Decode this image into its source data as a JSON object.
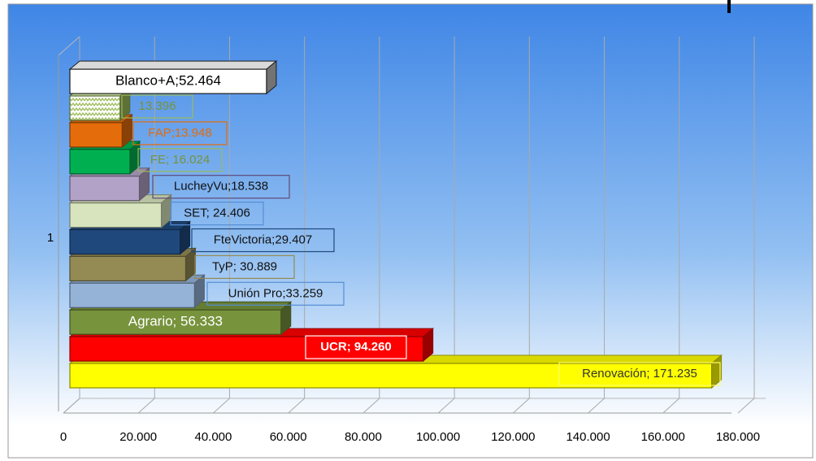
{
  "chart_data": {
    "type": "bar3d",
    "orientation": "horizontal",
    "categories": [
      "1"
    ],
    "series": [
      {
        "name": "Renovación",
        "color": "#ffff00",
        "values": [
          171235
        ],
        "value_labels": [
          "Renovación; 171.235"
        ]
      },
      {
        "name": "UCR",
        "color": "#ff0000",
        "values": [
          94260
        ],
        "value_labels": [
          "UCR; 94.260"
        ]
      },
      {
        "name": "Agrario",
        "color": "#77933c",
        "values": [
          56333
        ],
        "value_labels": [
          "Agrario; 56.333"
        ]
      },
      {
        "name": "Unión Pro",
        "color": "#95b3d7",
        "values": [
          33259
        ],
        "value_labels": [
          "Unión Pro;33.259"
        ]
      },
      {
        "name": "TyP",
        "color": "#948a54",
        "values": [
          30889
        ],
        "value_labels": [
          "TyP; 30.889"
        ]
      },
      {
        "name": "FteVictoria",
        "color": "#1f497d",
        "values": [
          29407
        ],
        "value_labels": [
          "FteVictoria;29.407"
        ]
      },
      {
        "name": "SET",
        "color": "#d7e4bd",
        "values": [
          24406
        ],
        "value_labels": [
          "SET; 24.406"
        ]
      },
      {
        "name": "LucheyVu",
        "color": "#b3a2c7",
        "values": [
          18538
        ],
        "value_labels": [
          "LucheyVu;18.538"
        ]
      },
      {
        "name": "FE",
        "color": "#00b050",
        "values": [
          16024
        ],
        "value_labels": [
          "FE; 16.024"
        ]
      },
      {
        "name": "FAP",
        "color": "#e46c0a",
        "values": [
          13948
        ],
        "value_labels": [
          "FAP;13.948"
        ]
      },
      {
        "name": null,
        "color": "#9bbb59",
        "pattern": "zigzag",
        "values": [
          13396
        ],
        "value_labels": [
          "13.396"
        ]
      },
      {
        "name": "Blanco+A",
        "color": "#ffffff",
        "values": [
          52464
        ],
        "value_labels": [
          "Blanco+A;52.464"
        ]
      }
    ],
    "xlim": [
      0,
      180000
    ],
    "xticks": [
      0,
      {
        "value": 20000,
        "label": "20.000"
      },
      {
        "value": 40000,
        "label": "40.000"
      },
      {
        "value": 60000,
        "label": "60.000"
      },
      {
        "value": 80000,
        "label": "80.000"
      },
      {
        "value": 100000,
        "label": "100.000"
      },
      {
        "value": 120000,
        "label": "120.000"
      },
      {
        "value": 140000,
        "label": "140.000"
      },
      {
        "value": 160000,
        "label": "160.000"
      },
      {
        "value": 180000,
        "label": "180.000"
      }
    ],
    "grid": true
  }
}
